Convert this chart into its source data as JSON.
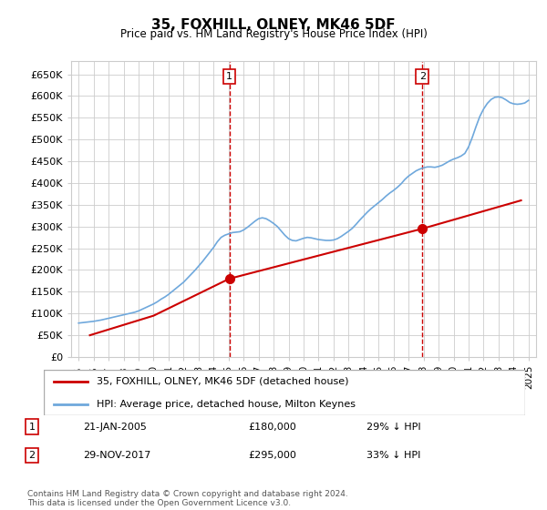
{
  "title": "35, FOXHILL, OLNEY, MK46 5DF",
  "subtitle": "Price paid vs. HM Land Registry's House Price Index (HPI)",
  "legend_line1": "35, FOXHILL, OLNEY, MK46 5DF (detached house)",
  "legend_line2": "HPI: Average price, detached house, Milton Keynes",
  "sale1_label": "1",
  "sale1_date": "21-JAN-2005",
  "sale1_price": "£180,000",
  "sale1_note": "29% ↓ HPI",
  "sale2_label": "2",
  "sale2_date": "29-NOV-2017",
  "sale2_price": "£295,000",
  "sale2_note": "33% ↓ HPI",
  "footnote": "Contains HM Land Registry data © Crown copyright and database right 2024.\nThis data is licensed under the Open Government Licence v3.0.",
  "hpi_color": "#6fa8dc",
  "price_color": "#cc0000",
  "vline_color": "#cc0000",
  "vline_style": "--",
  "marker_color": "#cc0000",
  "background_color": "#ffffff",
  "grid_color": "#cccccc",
  "ylim": [
    0,
    680000
  ],
  "yticks": [
    0,
    50000,
    100000,
    150000,
    200000,
    250000,
    300000,
    350000,
    400000,
    450000,
    500000,
    550000,
    600000,
    650000
  ],
  "xlim_start": 1994.5,
  "xlim_end": 2025.5,
  "sale1_x": 2005.05,
  "sale1_y": 180000,
  "sale2_x": 2017.92,
  "sale2_y": 295000,
  "hpi_x": [
    1995,
    1995.25,
    1995.5,
    1995.75,
    1996,
    1996.25,
    1996.5,
    1996.75,
    1997,
    1997.25,
    1997.5,
    1997.75,
    1998,
    1998.25,
    1998.5,
    1998.75,
    1999,
    1999.25,
    1999.5,
    1999.75,
    2000,
    2000.25,
    2000.5,
    2000.75,
    2001,
    2001.25,
    2001.5,
    2001.75,
    2002,
    2002.25,
    2002.5,
    2002.75,
    2003,
    2003.25,
    2003.5,
    2003.75,
    2004,
    2004.25,
    2004.5,
    2004.75,
    2005,
    2005.25,
    2005.5,
    2005.75,
    2006,
    2006.25,
    2006.5,
    2006.75,
    2007,
    2007.25,
    2007.5,
    2007.75,
    2008,
    2008.25,
    2008.5,
    2008.75,
    2009,
    2009.25,
    2009.5,
    2009.75,
    2010,
    2010.25,
    2010.5,
    2010.75,
    2011,
    2011.25,
    2011.5,
    2011.75,
    2012,
    2012.25,
    2012.5,
    2012.75,
    2013,
    2013.25,
    2013.5,
    2013.75,
    2014,
    2014.25,
    2014.5,
    2014.75,
    2015,
    2015.25,
    2015.5,
    2015.75,
    2016,
    2016.25,
    2016.5,
    2016.75,
    2017,
    2017.25,
    2017.5,
    2017.75,
    2018,
    2018.25,
    2018.5,
    2018.75,
    2019,
    2019.25,
    2019.5,
    2019.75,
    2020,
    2020.25,
    2020.5,
    2020.75,
    2021,
    2021.25,
    2021.5,
    2021.75,
    2022,
    2022.25,
    2022.5,
    2022.75,
    2023,
    2023.25,
    2023.5,
    2023.75,
    2024,
    2024.25,
    2024.5,
    2024.75,
    2025
  ],
  "hpi_y": [
    78000,
    79000,
    80000,
    81000,
    82000,
    83500,
    85000,
    87000,
    89000,
    91000,
    93000,
    95000,
    97000,
    99000,
    101000,
    103000,
    106000,
    110000,
    114000,
    118000,
    122000,
    127000,
    133000,
    138000,
    144000,
    151000,
    158000,
    165000,
    172000,
    181000,
    190000,
    199000,
    209000,
    219000,
    230000,
    241000,
    252000,
    265000,
    275000,
    280000,
    283000,
    286000,
    287000,
    288000,
    292000,
    298000,
    305000,
    312000,
    318000,
    320000,
    318000,
    313000,
    307000,
    300000,
    290000,
    280000,
    272000,
    268000,
    267000,
    270000,
    273000,
    275000,
    274000,
    272000,
    270000,
    269000,
    268000,
    268000,
    269000,
    272000,
    277000,
    283000,
    289000,
    296000,
    305000,
    315000,
    324000,
    333000,
    341000,
    348000,
    355000,
    362000,
    370000,
    377000,
    383000,
    390000,
    398000,
    408000,
    416000,
    422000,
    428000,
    432000,
    435000,
    437000,
    437000,
    436000,
    438000,
    441000,
    446000,
    451000,
    455000,
    458000,
    462000,
    468000,
    483000,
    505000,
    530000,
    553000,
    570000,
    583000,
    592000,
    597000,
    598000,
    596000,
    591000,
    585000,
    582000,
    581000,
    582000,
    584000,
    590000
  ],
  "price_x": [
    1995.75,
    2000,
    2005.05,
    2017.92,
    2024.5
  ],
  "price_y": [
    50000,
    95000,
    180000,
    295000,
    360000
  ]
}
